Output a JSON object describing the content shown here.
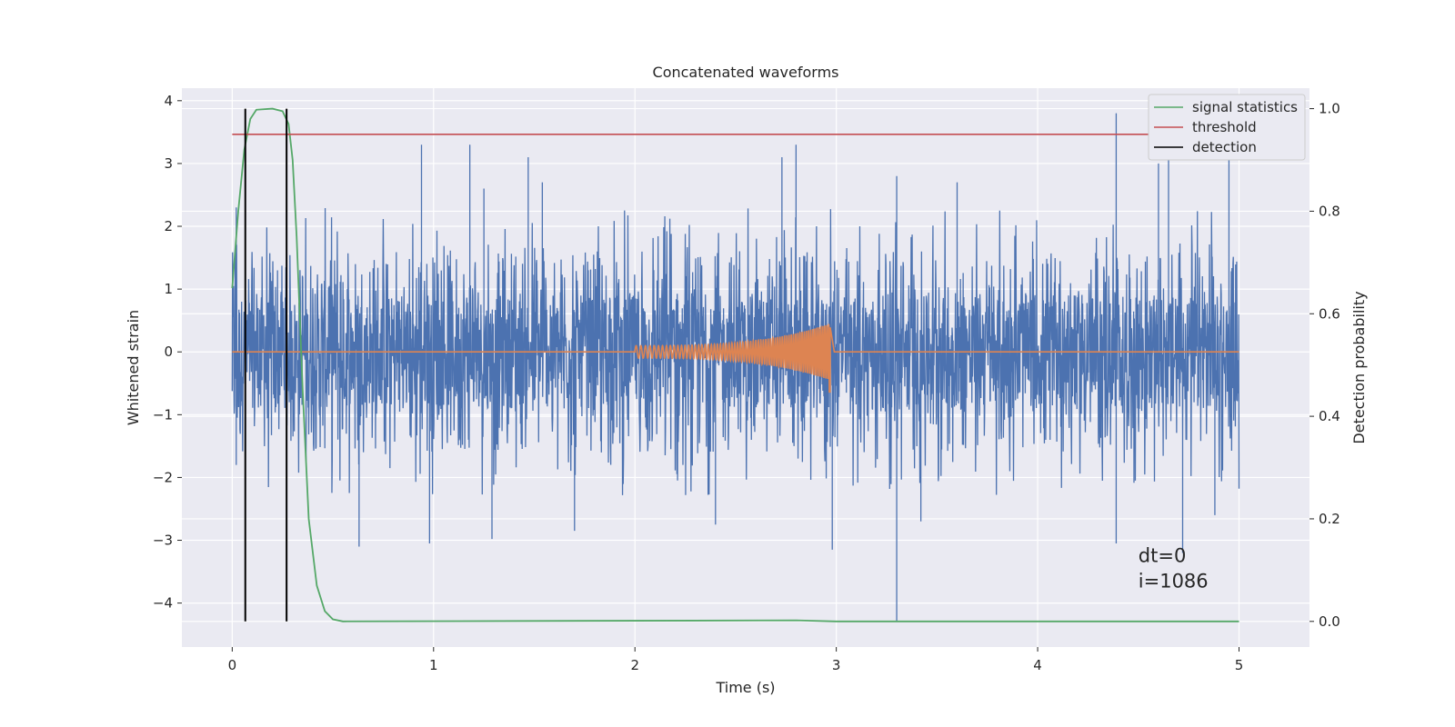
{
  "chart_data": {
    "type": "line",
    "title": "Concatenated waveforms",
    "xlabel": "Time (s)",
    "ylabel": "Whitened strain",
    "y2label": "Detection probability",
    "xlim": [
      -0.25,
      5.35
    ],
    "ylim": [
      -4.7,
      4.2
    ],
    "y2lim": [
      -0.05,
      1.04
    ],
    "xticks": [
      0,
      1,
      2,
      3,
      4,
      5
    ],
    "yticks": [
      -4,
      -3,
      -2,
      -1,
      0,
      1,
      2,
      3,
      4
    ],
    "y2ticks": [
      0.0,
      0.2,
      0.4,
      0.6,
      0.8,
      1.0
    ],
    "grid": true,
    "legend_position": "top-right",
    "annotations": [
      "dt=0",
      "i=1086"
    ],
    "series": [
      {
        "name": "",
        "role": "whitened strain noise",
        "axis": "left",
        "color": "#4c72b0",
        "x_range": [
          0,
          5
        ],
        "band_amplitude": 1.0,
        "typical_peak": 2.3,
        "spikes": [
          {
            "x": 0.02,
            "y": 2.3
          },
          {
            "x": 0.02,
            "y": -1.8
          },
          {
            "x": 0.94,
            "y": 3.3
          },
          {
            "x": 1.18,
            "y": 3.3
          },
          {
            "x": 1.25,
            "y": 2.6
          },
          {
            "x": 1.47,
            "y": 3.1
          },
          {
            "x": 1.54,
            "y": 2.7
          },
          {
            "x": 2.8,
            "y": 3.3
          },
          {
            "x": 2.73,
            "y": 3.1
          },
          {
            "x": 3.3,
            "y": 2.8
          },
          {
            "x": 3.6,
            "y": 2.7
          },
          {
            "x": 4.39,
            "y": 3.8
          },
          {
            "x": 4.6,
            "y": 3.0
          },
          {
            "x": 4.65,
            "y": 3.2
          },
          {
            "x": 4.95,
            "y": 3.3
          },
          {
            "x": 0.63,
            "y": -3.1
          },
          {
            "x": 0.98,
            "y": -3.05
          },
          {
            "x": 1.29,
            "y": -2.98
          },
          {
            "x": 1.7,
            "y": -2.85
          },
          {
            "x": 2.4,
            "y": -2.75
          },
          {
            "x": 2.98,
            "y": -3.15
          },
          {
            "x": 3.3,
            "y": -4.3
          },
          {
            "x": 3.42,
            "y": -2.7
          },
          {
            "x": 4.39,
            "y": -3.05
          },
          {
            "x": 4.72,
            "y": -3.2
          },
          {
            "x": 4.88,
            "y": -2.6
          }
        ]
      },
      {
        "name": "",
        "role": "injected waveform",
        "axis": "left",
        "color": "#dd8452",
        "flat_value": 0,
        "chirp_start": 2.0,
        "chirp_end": 2.97,
        "peak_amplitude": [
          0.45,
          -0.65
        ]
      },
      {
        "name": "signal statistics",
        "axis": "right",
        "color": "#55a868",
        "points": [
          [
            0.0,
            0.65
          ],
          [
            0.03,
            0.8
          ],
          [
            0.06,
            0.92
          ],
          [
            0.09,
            0.98
          ],
          [
            0.12,
            0.998
          ],
          [
            0.2,
            1.0
          ],
          [
            0.25,
            0.995
          ],
          [
            0.28,
            0.97
          ],
          [
            0.3,
            0.9
          ],
          [
            0.32,
            0.75
          ],
          [
            0.35,
            0.45
          ],
          [
            0.38,
            0.2
          ],
          [
            0.42,
            0.07
          ],
          [
            0.46,
            0.02
          ],
          [
            0.5,
            0.004
          ],
          [
            0.55,
            0.0
          ],
          [
            2.8,
            0.002
          ],
          [
            3.0,
            0.0
          ],
          [
            5.0,
            0.0
          ]
        ]
      },
      {
        "name": "threshold",
        "axis": "right",
        "color": "#c44e52",
        "value": 0.95,
        "x_range": [
          0,
          5
        ]
      },
      {
        "name": "detection",
        "axis": "right",
        "color": "#000000",
        "x": [
          0.065,
          0.27
        ],
        "y_range": [
          0,
          1
        ]
      }
    ]
  }
}
